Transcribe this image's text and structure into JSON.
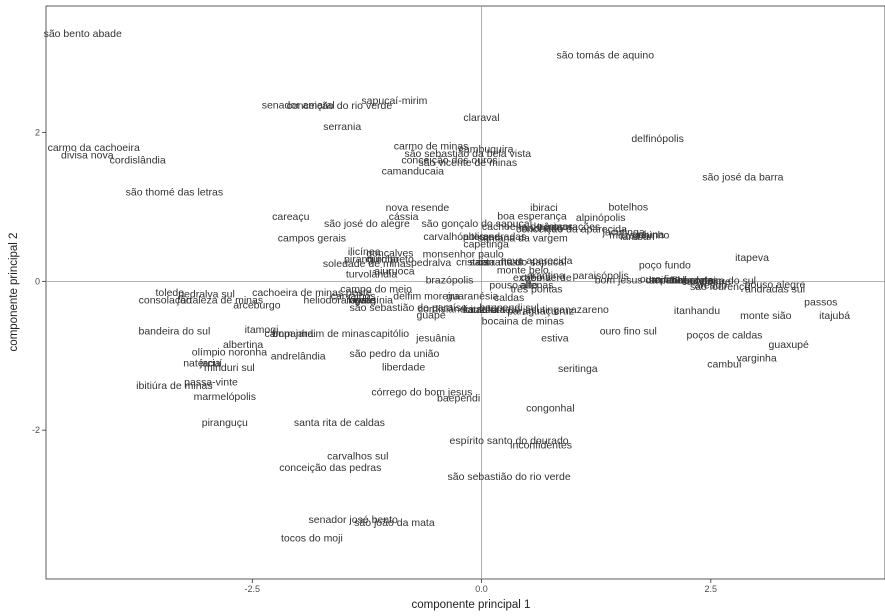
{
  "chart_data": {
    "type": "scatter",
    "title": "",
    "xlabel": "componente principal 1",
    "ylabel": "componente principal 2",
    "xlim": [
      -4.75,
      4.4
    ],
    "ylim": [
      -4.0,
      3.7
    ],
    "xticks": [
      -2.5,
      0.0,
      2.5
    ],
    "xtick_labels": [
      "-2.5",
      "0.0",
      "2.5"
    ],
    "yticks": [
      -2,
      0,
      2
    ],
    "ytick_labels": [
      "-2",
      "0",
      "2"
    ],
    "reference_lines": {
      "x": 0,
      "y": 0
    },
    "grid": false,
    "points": [
      {
        "label": "são bento abade",
        "x": -4.35,
        "y": 3.33
      },
      {
        "label": "são tomás de aquino",
        "x": 1.35,
        "y": 3.04
      },
      {
        "label": "senador amaral",
        "x": -2.0,
        "y": 2.37
      },
      {
        "label": "conceição do rio verde",
        "x": -1.55,
        "y": 2.36
      },
      {
        "label": "sapucaí-mirim",
        "x": -0.95,
        "y": 2.43
      },
      {
        "label": "claraval",
        "x": 0.0,
        "y": 2.2
      },
      {
        "label": "serrania",
        "x": -1.52,
        "y": 2.08
      },
      {
        "label": "delfinópolis",
        "x": 1.92,
        "y": 1.92
      },
      {
        "label": "carmo da cachoeira",
        "x": -4.23,
        "y": 1.8
      },
      {
        "label": "divisa nova",
        "x": -4.3,
        "y": 1.7
      },
      {
        "label": "cordislândia",
        "x": -3.75,
        "y": 1.63
      },
      {
        "label": "carmo de minas",
        "x": -0.55,
        "y": 1.82
      },
      {
        "label": "cambuquira",
        "x": 0.05,
        "y": 1.78
      },
      {
        "label": "são sebastião da bela vista",
        "x": -0.15,
        "y": 1.72
      },
      {
        "label": "conceição dos ouros",
        "x": -0.35,
        "y": 1.63
      },
      {
        "label": "são vicente de minas",
        "x": -0.15,
        "y": 1.6
      },
      {
        "label": "camanducaia",
        "x": -0.75,
        "y": 1.48
      },
      {
        "label": "são josé da barra",
        "x": 2.85,
        "y": 1.4
      },
      {
        "label": "são thomé das letras",
        "x": -3.35,
        "y": 1.2
      },
      {
        "label": "nova resende",
        "x": -0.7,
        "y": 0.99
      },
      {
        "label": "ibiraci",
        "x": 0.68,
        "y": 0.99
      },
      {
        "label": "botelhos",
        "x": 1.6,
        "y": 1.0
      },
      {
        "label": "cássia",
        "x": -0.85,
        "y": 0.87
      },
      {
        "label": "boa esperança",
        "x": 0.55,
        "y": 0.88
      },
      {
        "label": "alpinópolis",
        "x": 1.3,
        "y": 0.86
      },
      {
        "label": "careaçu",
        "x": -2.08,
        "y": 0.87
      },
      {
        "label": "são josé do alegre",
        "x": -1.25,
        "y": 0.78
      },
      {
        "label": "são gonçalo do sapucaí",
        "x": -0.05,
        "y": 0.78
      },
      {
        "label": "cachoeira de minas",
        "x": 0.5,
        "y": 0.74
      },
      {
        "label": "machado",
        "x": 0.65,
        "y": 0.72
      },
      {
        "label": "três corações",
        "x": 0.95,
        "y": 0.74
      },
      {
        "label": "conceição da aparecida",
        "x": 0.98,
        "y": 0.7
      },
      {
        "label": "jacutinga",
        "x": 1.55,
        "y": 0.66
      },
      {
        "label": "lambari",
        "x": 1.7,
        "y": 0.6
      },
      {
        "label": "muzambinho",
        "x": 1.72,
        "y": 0.62
      },
      {
        "label": "guiuna",
        "x": 1.82,
        "y": 0.63
      },
      {
        "label": "campos gerais",
        "x": -1.85,
        "y": 0.58
      },
      {
        "label": "carvalhópolis",
        "x": -0.3,
        "y": 0.6
      },
      {
        "label": "alterosa",
        "x": 0.0,
        "y": 0.6
      },
      {
        "label": "andradas",
        "x": 0.25,
        "y": 0.6
      },
      {
        "label": "santana da vargem",
        "x": 0.45,
        "y": 0.58
      },
      {
        "label": "capetinga",
        "x": 0.05,
        "y": 0.5
      },
      {
        "label": "ilicínea",
        "x": -1.28,
        "y": 0.4
      },
      {
        "label": "gonçalves",
        "x": -1.0,
        "y": 0.38
      },
      {
        "label": "monsenhor paulo",
        "x": -0.2,
        "y": 0.37
      },
      {
        "label": "piranguinho",
        "x": -1.2,
        "y": 0.3
      },
      {
        "label": "ouro preto",
        "x": -1.0,
        "y": 0.3
      },
      {
        "label": "soledade de minas",
        "x": -1.25,
        "y": 0.24
      },
      {
        "label": "pedralva",
        "x": -0.55,
        "y": 0.25
      },
      {
        "label": "cristais",
        "x": -0.1,
        "y": 0.26
      },
      {
        "label": "carrancas",
        "x": 0.2,
        "y": 0.26
      },
      {
        "label": "santa rita do sapucaí",
        "x": 0.4,
        "y": 0.26
      },
      {
        "label": "nova aparecida",
        "x": 0.6,
        "y": 0.28
      },
      {
        "label": "poço fundo",
        "x": 2.0,
        "y": 0.22
      },
      {
        "label": "itapeva",
        "x": 2.95,
        "y": 0.32
      },
      {
        "label": "turvolândia",
        "x": -1.2,
        "y": 0.1
      },
      {
        "label": "aiuruoca",
        "x": -0.95,
        "y": 0.14
      },
      {
        "label": "monte belo",
        "x": 0.45,
        "y": 0.15
      },
      {
        "label": "brazópolis",
        "x": -0.35,
        "y": 0.02
      },
      {
        "label": "arantina",
        "x": 0.7,
        "y": 0.08
      },
      {
        "label": "extrema",
        "x": 0.55,
        "y": 0.05
      },
      {
        "label": "cabo verde",
        "x": 0.7,
        "y": 0.05
      },
      {
        "label": "paraisópolis",
        "x": 1.3,
        "y": 0.08
      },
      {
        "label": "bom jesus da penha",
        "x": 1.75,
        "y": 0.02
      },
      {
        "label": "ouro fino",
        "x": 1.95,
        "y": 0.03
      },
      {
        "label": "minduri",
        "x": 2.05,
        "y": 0.02
      },
      {
        "label": "senador cortes",
        "x": 2.2,
        "y": 0.02
      },
      {
        "label": "heliodora",
        "x": 2.3,
        "y": 0.02
      },
      {
        "label": "campestre",
        "x": 2.45,
        "y": 0.0
      },
      {
        "label": "bandeira do sul",
        "x": 2.6,
        "y": 0.01
      },
      {
        "label": "areado",
        "x": 2.5,
        "y": -0.05
      },
      {
        "label": "sao lourenço",
        "x": 2.6,
        "y": -0.07
      },
      {
        "label": "pouso alegre",
        "x": 3.2,
        "y": -0.04
      },
      {
        "label": "andradas sul",
        "x": 3.2,
        "y": -0.1
      },
      {
        "label": "toledo",
        "x": -3.4,
        "y": -0.15
      },
      {
        "label": "pedralva sul",
        "x": -3.0,
        "y": -0.17
      },
      {
        "label": "consolação",
        "x": -3.45,
        "y": -0.25
      },
      {
        "label": "fortaleza de minas",
        "x": -2.85,
        "y": -0.25
      },
      {
        "label": "arceburgo",
        "x": -2.45,
        "y": -0.32
      },
      {
        "label": "cachoeira de minas oeste",
        "x": -1.85,
        "y": -0.15
      },
      {
        "label": "campo do meio",
        "x": -1.15,
        "y": -0.1
      },
      {
        "label": "pouso alto",
        "x": 0.35,
        "y": -0.05
      },
      {
        "label": "alfenas",
        "x": 0.6,
        "y": -0.05
      },
      {
        "label": "três pontas",
        "x": 0.6,
        "y": -0.1
      },
      {
        "label": "heliodora oeste",
        "x": -1.55,
        "y": -0.25
      },
      {
        "label": "carvalhos",
        "x": -1.4,
        "y": -0.2
      },
      {
        "label": "ingaí",
        "x": -1.35,
        "y": -0.25
      },
      {
        "label": "lavras",
        "x": -1.3,
        "y": -0.25
      },
      {
        "label": "virgínia",
        "x": -1.15,
        "y": -0.25
      },
      {
        "label": "delfim moreira",
        "x": -0.6,
        "y": -0.2
      },
      {
        "label": "guaranésia",
        "x": -0.1,
        "y": -0.2
      },
      {
        "label": "caldas",
        "x": 0.3,
        "y": -0.22
      },
      {
        "label": "são sebastião do paraíso",
        "x": -0.8,
        "y": -0.35
      },
      {
        "label": "cordislândia sul",
        "x": -0.3,
        "y": -0.37
      },
      {
        "label": "cruzília",
        "x": 0.0,
        "y": -0.38
      },
      {
        "label": "itamonte",
        "x": 0.1,
        "y": -0.38
      },
      {
        "label": "santa rita do jacutinga",
        "x": 0.35,
        "y": -0.38
      },
      {
        "label": "paraguaçu",
        "x": 0.55,
        "y": -0.4
      },
      {
        "label": "baependi sul",
        "x": 0.3,
        "y": -0.35
      },
      {
        "label": "guapé",
        "x": -0.55,
        "y": -0.45
      },
      {
        "label": "bocaina de minas",
        "x": 0.45,
        "y": -0.53
      },
      {
        "label": "cruz",
        "x": 0.9,
        "y": -0.4
      },
      {
        "label": "nazareno",
        "x": 1.15,
        "y": -0.38
      },
      {
        "label": "itanhandu",
        "x": 2.35,
        "y": -0.39
      },
      {
        "label": "monte sião",
        "x": 3.1,
        "y": -0.46
      },
      {
        "label": "itajubá",
        "x": 3.85,
        "y": -0.46
      },
      {
        "label": "passos",
        "x": 3.7,
        "y": -0.28
      },
      {
        "label": "bandeira do sul",
        "x": -3.35,
        "y": -0.67
      },
      {
        "label": "itamogi",
        "x": -2.4,
        "y": -0.65
      },
      {
        "label": "bom jardim de minas",
        "x": -1.75,
        "y": -0.7
      },
      {
        "label": "campanha",
        "x": -2.1,
        "y": -0.7
      },
      {
        "label": "capitólio",
        "x": -1.0,
        "y": -0.7
      },
      {
        "label": "jesuânia",
        "x": -0.5,
        "y": -0.76
      },
      {
        "label": "estiva",
        "x": 0.8,
        "y": -0.76
      },
      {
        "label": "ouro fino sul",
        "x": 1.6,
        "y": -0.67
      },
      {
        "label": "poços de caldas",
        "x": 2.65,
        "y": -0.72
      },
      {
        "label": "guaxupé",
        "x": 3.35,
        "y": -0.85
      },
      {
        "label": "albertina",
        "x": -2.6,
        "y": -0.85
      },
      {
        "label": "olímpio noronha",
        "x": -2.75,
        "y": -0.95
      },
      {
        "label": "andrelândia",
        "x": -2.0,
        "y": -1.0
      },
      {
        "label": "são pedro da união",
        "x": -0.95,
        "y": -0.97
      },
      {
        "label": "varginha",
        "x": 3.0,
        "y": -1.03
      },
      {
        "label": "cambuí",
        "x": 2.65,
        "y": -1.11
      },
      {
        "label": "natércia",
        "x": -3.05,
        "y": -1.1
      },
      {
        "label": "jacuí",
        "x": -2.95,
        "y": -1.1
      },
      {
        "label": "minduri sul",
        "x": -2.75,
        "y": -1.16
      },
      {
        "label": "liberdade",
        "x": -0.85,
        "y": -1.15
      },
      {
        "label": "seritinga",
        "x": 1.05,
        "y": -1.17
      },
      {
        "label": "passa-vinte",
        "x": -2.95,
        "y": -1.35
      },
      {
        "label": "ibitiúra de minas",
        "x": -3.35,
        "y": -1.4
      },
      {
        "label": "córrego do bom jesus",
        "x": -0.65,
        "y": -1.49
      },
      {
        "label": "baependi",
        "x": -0.25,
        "y": -1.57
      },
      {
        "label": "marmelópolis",
        "x": -2.8,
        "y": -1.55
      },
      {
        "label": "congonhal",
        "x": 0.75,
        "y": -1.7
      },
      {
        "label": "piranguçu",
        "x": -2.8,
        "y": -1.9
      },
      {
        "label": "santa rita de caldas",
        "x": -1.55,
        "y": -1.9
      },
      {
        "label": "espírito santo do dourado",
        "x": 0.3,
        "y": -2.14
      },
      {
        "label": "inconfidentes",
        "x": 0.65,
        "y": -2.2
      },
      {
        "label": "carvalhos sul",
        "x": -1.35,
        "y": -2.35
      },
      {
        "label": "conceição das pedras",
        "x": -1.65,
        "y": -2.5
      },
      {
        "label": "são sebastião do rio verde",
        "x": 0.3,
        "y": -2.62
      },
      {
        "label": "senador josé bento",
        "x": -1.4,
        "y": -3.2
      },
      {
        "label": "são joão da mata",
        "x": -0.95,
        "y": -3.24
      },
      {
        "label": "tocos do moji",
        "x": -1.85,
        "y": -3.45
      }
    ]
  }
}
